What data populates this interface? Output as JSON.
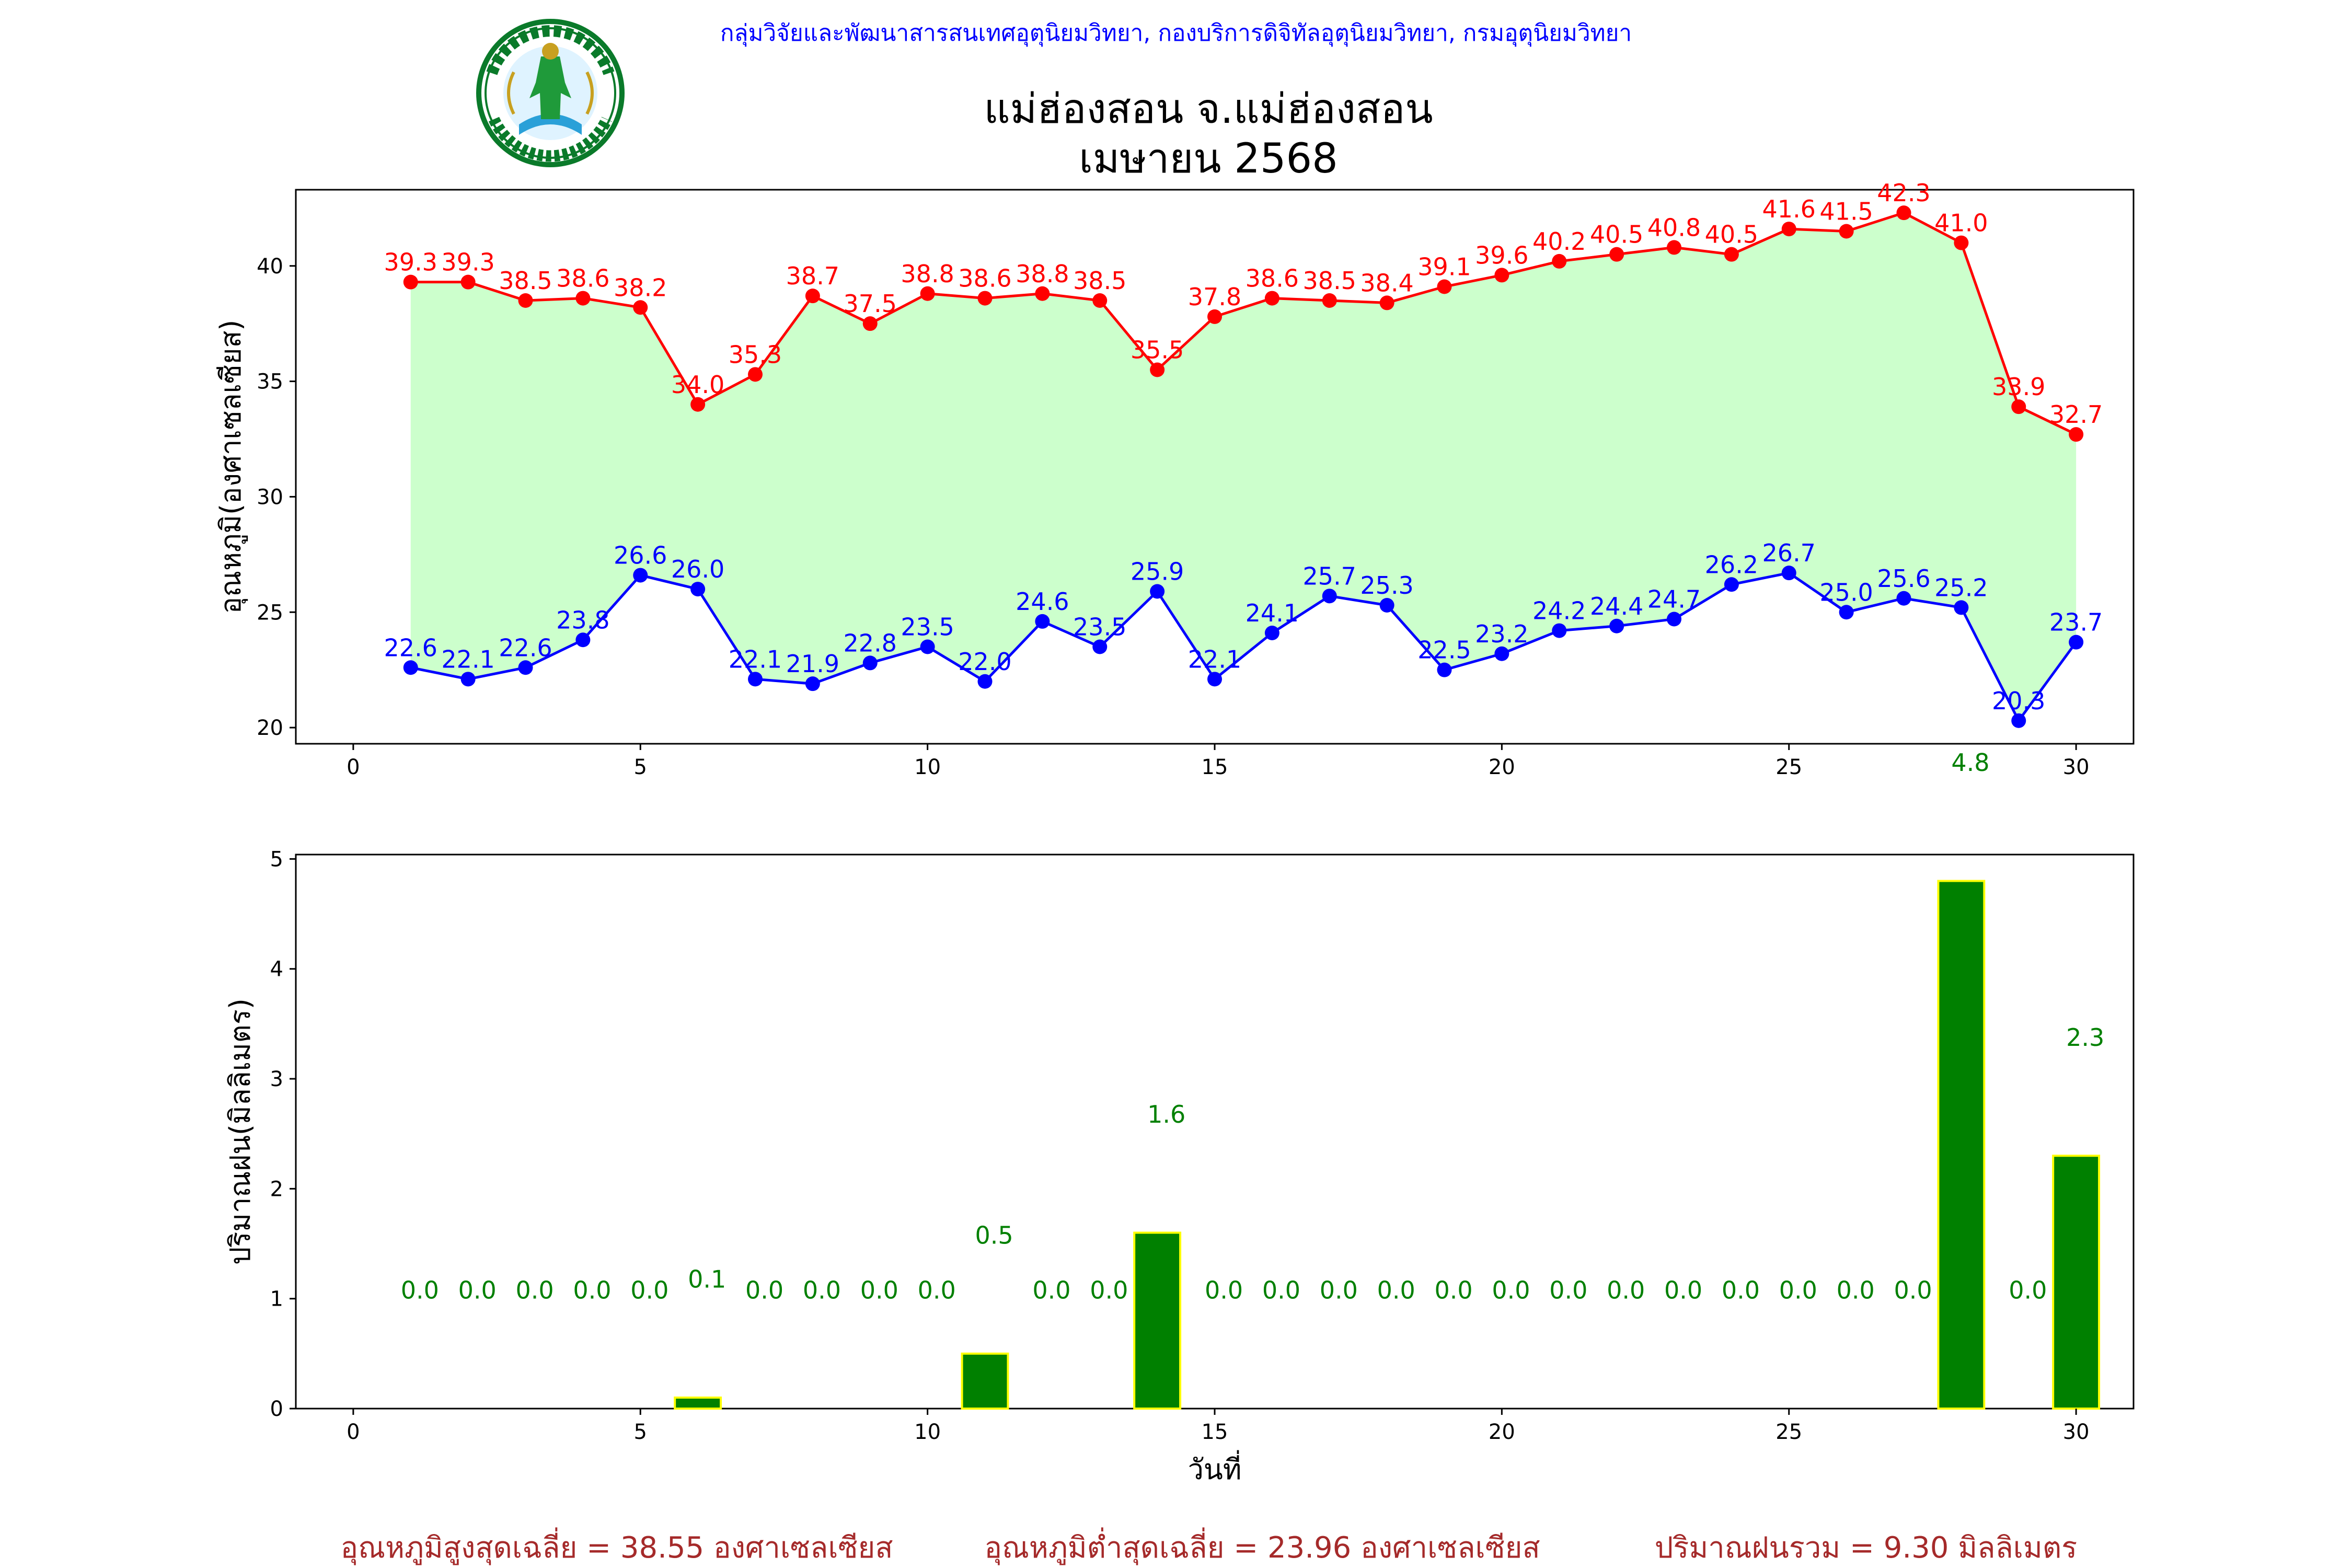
{
  "header": {
    "org_line": "กลุ่มวิจัยและพัฒนาสารสนเทศอุตุนิยมวิทยา, กองบริการดิจิทัลอุตุนิยมวิทยา, กรมอุตุนิยมวิทยา",
    "logo_text": "กรมอุตุนิยมวิทยา METEOROLOGICAL DEPARTMENT"
  },
  "title": {
    "line1": "แม่ฮ่องสอน จ.แม่ฮ่องสอน",
    "line2": "เมษายน 2568"
  },
  "colors": {
    "max_line": "#ff0000",
    "min_line": "#0000ff",
    "fill_between": "#ccffcc",
    "rain_bar": "#008000",
    "rain_bar_edge": "#ffff00",
    "footer_text": "#a52a2a",
    "header_text": "#0000ff"
  },
  "chart_data": [
    {
      "type": "line",
      "name": "temperature",
      "ylabel": "อุณหภูมิ(องศาเซลเซียส)",
      "xlabel": "",
      "xlim": [
        -1,
        31
      ],
      "ylim": [
        19.3,
        43.3
      ],
      "xticks": [
        0,
        5,
        10,
        15,
        20,
        25,
        30
      ],
      "yticks": [
        20,
        25,
        30,
        35,
        40
      ],
      "fill_between": true,
      "x": [
        1,
        2,
        3,
        4,
        5,
        6,
        7,
        8,
        9,
        10,
        11,
        12,
        13,
        14,
        15,
        16,
        17,
        18,
        19,
        20,
        21,
        22,
        23,
        24,
        25,
        26,
        27,
        28,
        29,
        30
      ],
      "series": [
        {
          "key": "max",
          "values": [
            39.3,
            39.3,
            38.5,
            38.6,
            38.2,
            34.0,
            35.3,
            38.7,
            37.5,
            38.8,
            38.6,
            38.8,
            38.5,
            35.5,
            37.8,
            38.6,
            38.5,
            38.4,
            39.1,
            39.6,
            40.2,
            40.5,
            40.8,
            40.5,
            41.6,
            41.5,
            42.3,
            41.0,
            33.9,
            32.7
          ]
        },
        {
          "key": "min",
          "values": [
            22.6,
            22.1,
            22.6,
            23.8,
            26.6,
            26.0,
            22.1,
            21.9,
            22.8,
            23.5,
            22.0,
            24.6,
            23.5,
            25.9,
            22.1,
            24.1,
            25.7,
            25.3,
            22.5,
            23.2,
            24.2,
            24.4,
            24.7,
            26.2,
            26.7,
            25.0,
            25.6,
            25.2,
            20.3,
            23.7
          ]
        }
      ]
    },
    {
      "type": "bar",
      "name": "rainfall",
      "ylabel": "ปริมาณฝน(มิลลิเมตร)",
      "xlabel": "วันที่",
      "xlim": [
        -1,
        31
      ],
      "ylim": [
        0,
        5.04
      ],
      "xticks": [
        0,
        5,
        10,
        15,
        20,
        25,
        30
      ],
      "yticks": [
        0,
        1,
        2,
        3,
        4,
        5
      ],
      "x": [
        1,
        2,
        3,
        4,
        5,
        6,
        7,
        8,
        9,
        10,
        11,
        12,
        13,
        14,
        15,
        16,
        17,
        18,
        19,
        20,
        21,
        22,
        23,
        24,
        25,
        26,
        27,
        28,
        29,
        30
      ],
      "values": [
        0.0,
        0.0,
        0.0,
        0.0,
        0.0,
        0.1,
        0.0,
        0.0,
        0.0,
        0.0,
        0.5,
        0.0,
        0.0,
        1.6,
        0.0,
        0.0,
        0.0,
        0.0,
        0.0,
        0.0,
        0.0,
        0.0,
        0.0,
        0.0,
        0.0,
        0.0,
        0.0,
        4.8,
        0.0,
        2.3
      ]
    }
  ],
  "footer": {
    "avg_max": "อุณหภูมิสูงสุดเฉลี่ย = 38.55 องศาเซลเซียส",
    "avg_min": "อุณหภูมิต่ำสุดเฉลี่ย = 23.96 องศาเซลเซียส",
    "total_rain": "ปริมาณฝนรวม = 9.30 มิลลิเมตร"
  }
}
